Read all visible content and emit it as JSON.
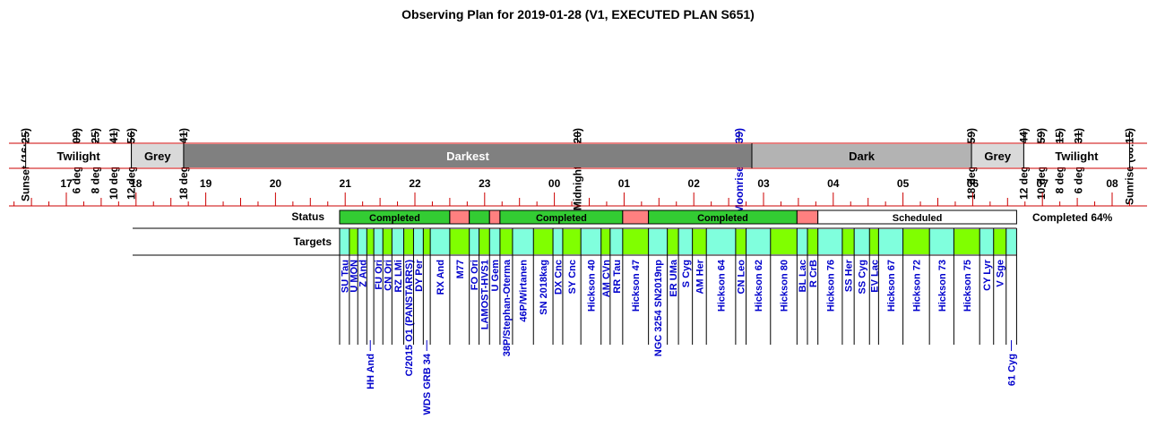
{
  "title": "Observing Plan for 2019-01-28 (V1, EXECUTED PLAN S651)",
  "colors": {
    "twilight": "#ffffff",
    "grey": "#d9d9d9",
    "darkest": "#808080",
    "dark": "#b3b3b3",
    "axis_red": "#cc0000",
    "completed": "#33cc33",
    "failed": "#ff8080",
    "scheduled": "#ffffff",
    "target_cyan": "#80ffdd",
    "target_green": "#80ff00",
    "highlight_label": "#0000cc"
  },
  "events": [
    {
      "label": "Sunset (16:25)",
      "hour": 16.417
    },
    {
      "label": "6 deg (17:09)",
      "hour": 17.15
    },
    {
      "label": "8 deg (17:25)",
      "hour": 17.417
    },
    {
      "label": "10 deg (17:41)",
      "hour": 17.683
    },
    {
      "label": "12 deg (17:56)",
      "hour": 17.933
    },
    {
      "label": "18 deg (18:41)",
      "hour": 18.683
    },
    {
      "label": "Midnight (00:20)",
      "hour": 24.333
    },
    {
      "label": "Moonrise (02:39)",
      "hour": 26.65,
      "highlight": true
    },
    {
      "label": "18 deg (05:59)",
      "hour": 29.983
    },
    {
      "label": "12 deg (06:44)",
      "hour": 30.733
    },
    {
      "label": "10 deg (06:59)",
      "hour": 30.983
    },
    {
      "label": "8 deg (07:15)",
      "hour": 31.25
    },
    {
      "label": "6 deg (07:31)",
      "hour": 31.517
    },
    {
      "label": "Sunrise (08:15)",
      "hour": 32.25
    }
  ],
  "phases": [
    {
      "label": "Twilight",
      "start": 16.417,
      "end": 17.933,
      "type": "twilight"
    },
    {
      "label": "Grey",
      "start": 17.933,
      "end": 18.683,
      "type": "grey"
    },
    {
      "label": "Darkest",
      "start": 18.683,
      "end": 26.833,
      "type": "darkest"
    },
    {
      "label": "Dark",
      "start": 26.833,
      "end": 29.983,
      "type": "dark"
    },
    {
      "label": "Grey",
      "start": 29.983,
      "end": 30.733,
      "type": "grey"
    },
    {
      "label": "Twilight",
      "start": 30.733,
      "end": 32.25,
      "type": "twilight"
    }
  ],
  "hour_labels": [
    "17",
    "18",
    "19",
    "20",
    "21",
    "22",
    "23",
    "00",
    "01",
    "02",
    "03",
    "04",
    "05",
    "06",
    "07",
    "08"
  ],
  "hour_start": 17,
  "status_label": "Status",
  "targets_label": "Targets",
  "completion_text": "Completed 64%",
  "status_segments": [
    {
      "start": 20.92,
      "end": 22.5,
      "status": "completed",
      "label": "Completed"
    },
    {
      "start": 22.5,
      "end": 22.78,
      "status": "failed",
      "label": ""
    },
    {
      "start": 22.78,
      "end": 23.07,
      "status": "completed",
      "label": ""
    },
    {
      "start": 23.07,
      "end": 23.22,
      "status": "failed",
      "label": ""
    },
    {
      "start": 23.22,
      "end": 24.98,
      "status": "completed",
      "label": "Completed"
    },
    {
      "start": 24.98,
      "end": 25.35,
      "status": "failed",
      "label": ""
    },
    {
      "start": 25.35,
      "end": 27.48,
      "status": "completed",
      "label": "Completed"
    },
    {
      "start": 27.48,
      "end": 27.78,
      "status": "failed",
      "label": ""
    },
    {
      "start": 27.78,
      "end": 30.63,
      "status": "scheduled",
      "label": "Scheduled"
    }
  ],
  "targets": [
    {
      "name": "SU Tau",
      "start": 20.92,
      "end": 21.06,
      "fill": "cyan",
      "pos": "upper"
    },
    {
      "name": "U MON",
      "start": 21.06,
      "end": 21.18,
      "fill": "green",
      "pos": "upper"
    },
    {
      "name": "Z And",
      "start": 21.18,
      "end": 21.31,
      "fill": "cyan",
      "pos": "upper"
    },
    {
      "name": "HH And",
      "start": 21.31,
      "end": 21.41,
      "fill": "green",
      "pos": "lower"
    },
    {
      "name": "FU Ori",
      "start": 21.41,
      "end": 21.54,
      "fill": "cyan",
      "pos": "upper"
    },
    {
      "name": "CN Ori",
      "start": 21.54,
      "end": 21.67,
      "fill": "green",
      "pos": "upper"
    },
    {
      "name": "RZ LMi",
      "start": 21.67,
      "end": 21.84,
      "fill": "cyan",
      "pos": "upper"
    },
    {
      "name": "C/2015 O1 (PANSTARRS)",
      "start": 21.84,
      "end": 21.98,
      "fill": "green",
      "pos": "upper"
    },
    {
      "name": "DY Per",
      "start": 21.98,
      "end": 22.12,
      "fill": "cyan",
      "pos": "upper"
    },
    {
      "name": "WDS GRB 34",
      "start": 22.12,
      "end": 22.22,
      "fill": "green",
      "pos": "lower"
    },
    {
      "name": "RX And",
      "start": 22.22,
      "end": 22.5,
      "fill": "cyan",
      "pos": "upper"
    },
    {
      "name": "M77",
      "start": 22.5,
      "end": 22.78,
      "fill": "green",
      "pos": "upper"
    },
    {
      "name": "FO Ori",
      "start": 22.78,
      "end": 22.92,
      "fill": "cyan",
      "pos": "upper"
    },
    {
      "name": "LAMOST-HVS1",
      "start": 22.92,
      "end": 23.07,
      "fill": "green",
      "pos": "upper"
    },
    {
      "name": "U Gem",
      "start": 23.07,
      "end": 23.22,
      "fill": "cyan",
      "pos": "upper"
    },
    {
      "name": "38P/Stephan-Oterma",
      "start": 23.22,
      "end": 23.4,
      "fill": "green",
      "pos": "upper"
    },
    {
      "name": "46P/Wirtanen",
      "start": 23.4,
      "end": 23.7,
      "fill": "cyan",
      "pos": "upper"
    },
    {
      "name": "SN 2018kag",
      "start": 23.7,
      "end": 23.98,
      "fill": "green",
      "pos": "upper"
    },
    {
      "name": "DX Cnc",
      "start": 23.98,
      "end": 24.12,
      "fill": "cyan",
      "pos": "upper"
    },
    {
      "name": "SY Cnc",
      "start": 24.12,
      "end": 24.38,
      "fill": "green",
      "pos": "upper"
    },
    {
      "name": "Hickson 40",
      "start": 24.38,
      "end": 24.67,
      "fill": "cyan",
      "pos": "upper"
    },
    {
      "name": "AM CVn",
      "start": 24.67,
      "end": 24.8,
      "fill": "green",
      "pos": "upper"
    },
    {
      "name": "RR Tau",
      "start": 24.8,
      "end": 24.98,
      "fill": "cyan",
      "pos": "upper"
    },
    {
      "name": "Hickson 47",
      "start": 24.98,
      "end": 25.35,
      "fill": "green",
      "pos": "upper"
    },
    {
      "name": "NGC 3254 SN2019np",
      "start": 25.35,
      "end": 25.62,
      "fill": "cyan",
      "pos": "upper"
    },
    {
      "name": "ER UMa",
      "start": 25.62,
      "end": 25.78,
      "fill": "green",
      "pos": "upper"
    },
    {
      "name": "S Cyg",
      "start": 25.78,
      "end": 25.98,
      "fill": "cyan",
      "pos": "upper"
    },
    {
      "name": "AM Her",
      "start": 25.98,
      "end": 26.18,
      "fill": "green",
      "pos": "upper"
    },
    {
      "name": "Hickson 64",
      "start": 26.18,
      "end": 26.6,
      "fill": "cyan",
      "pos": "upper"
    },
    {
      "name": "CN Leo",
      "start": 26.6,
      "end": 26.75,
      "fill": "green",
      "pos": "upper"
    },
    {
      "name": "Hickson 62",
      "start": 26.75,
      "end": 27.1,
      "fill": "cyan",
      "pos": "upper"
    },
    {
      "name": "Hickson 80",
      "start": 27.1,
      "end": 27.48,
      "fill": "green",
      "pos": "upper"
    },
    {
      "name": "BL Lac",
      "start": 27.48,
      "end": 27.63,
      "fill": "cyan",
      "pos": "upper"
    },
    {
      "name": "R CrB",
      "start": 27.63,
      "end": 27.78,
      "fill": "green",
      "pos": "upper"
    },
    {
      "name": "Hickson 76",
      "start": 27.78,
      "end": 28.13,
      "fill": "cyan",
      "pos": "upper"
    },
    {
      "name": "SS Her",
      "start": 28.13,
      "end": 28.3,
      "fill": "green",
      "pos": "upper"
    },
    {
      "name": "SS Cyg",
      "start": 28.3,
      "end": 28.52,
      "fill": "cyan",
      "pos": "upper"
    },
    {
      "name": "EV Lac",
      "start": 28.52,
      "end": 28.65,
      "fill": "green",
      "pos": "upper"
    },
    {
      "name": "Hickson 67",
      "start": 28.65,
      "end": 29.0,
      "fill": "cyan",
      "pos": "upper"
    },
    {
      "name": "Hickson 72",
      "start": 29.0,
      "end": 29.38,
      "fill": "green",
      "pos": "upper"
    },
    {
      "name": "Hickson 73",
      "start": 29.38,
      "end": 29.73,
      "fill": "cyan",
      "pos": "upper"
    },
    {
      "name": "Hickson 75",
      "start": 29.73,
      "end": 30.1,
      "fill": "green",
      "pos": "upper"
    },
    {
      "name": "CY Lyr",
      "start": 30.1,
      "end": 30.3,
      "fill": "cyan",
      "pos": "upper"
    },
    {
      "name": "V Sge",
      "start": 30.3,
      "end": 30.48,
      "fill": "green",
      "pos": "upper"
    },
    {
      "name": "61 Cyg",
      "start": 30.48,
      "end": 30.63,
      "fill": "cyan",
      "pos": "lower"
    }
  ]
}
